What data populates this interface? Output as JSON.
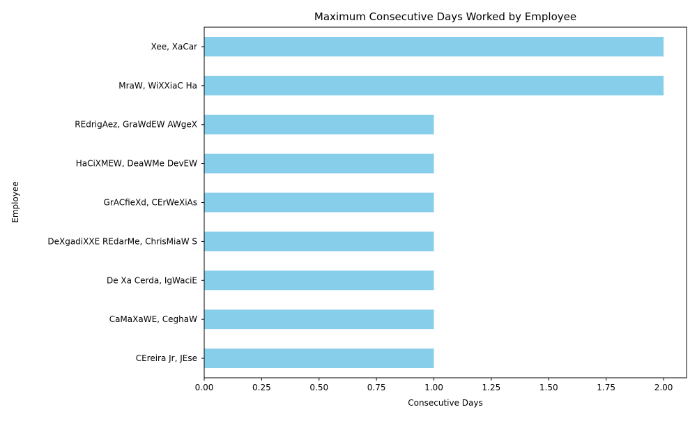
{
  "chart_data": {
    "type": "bar",
    "orientation": "horizontal",
    "title": "Maximum Consecutive Days Worked by Employee",
    "xlabel": "Consecutive Days",
    "ylabel": "Employee",
    "categories": [
      "Xee, XaCar",
      "MraW, WiXXiaC Ha",
      "REdrigAez, GraWdEW AWgeX",
      "HaCiXMEW, DeaWMe DevEW",
      "GrACfieXd, CErWeXiAs",
      "DeXgadiXXE REdarMe, ChrisMiaW S",
      "De Xa Cerda, IgWaciE",
      "CaMaXaWE, CeghaW",
      "CEreira Jr, JEse"
    ],
    "values": [
      2,
      2,
      1,
      1,
      1,
      1,
      1,
      1,
      1
    ],
    "xlim": [
      0,
      2.1
    ],
    "xticks": [
      "0.00",
      "0.25",
      "0.50",
      "0.75",
      "1.00",
      "1.25",
      "1.50",
      "1.75",
      "2.00"
    ],
    "grid": false,
    "bar_color": "#87CEEB"
  }
}
